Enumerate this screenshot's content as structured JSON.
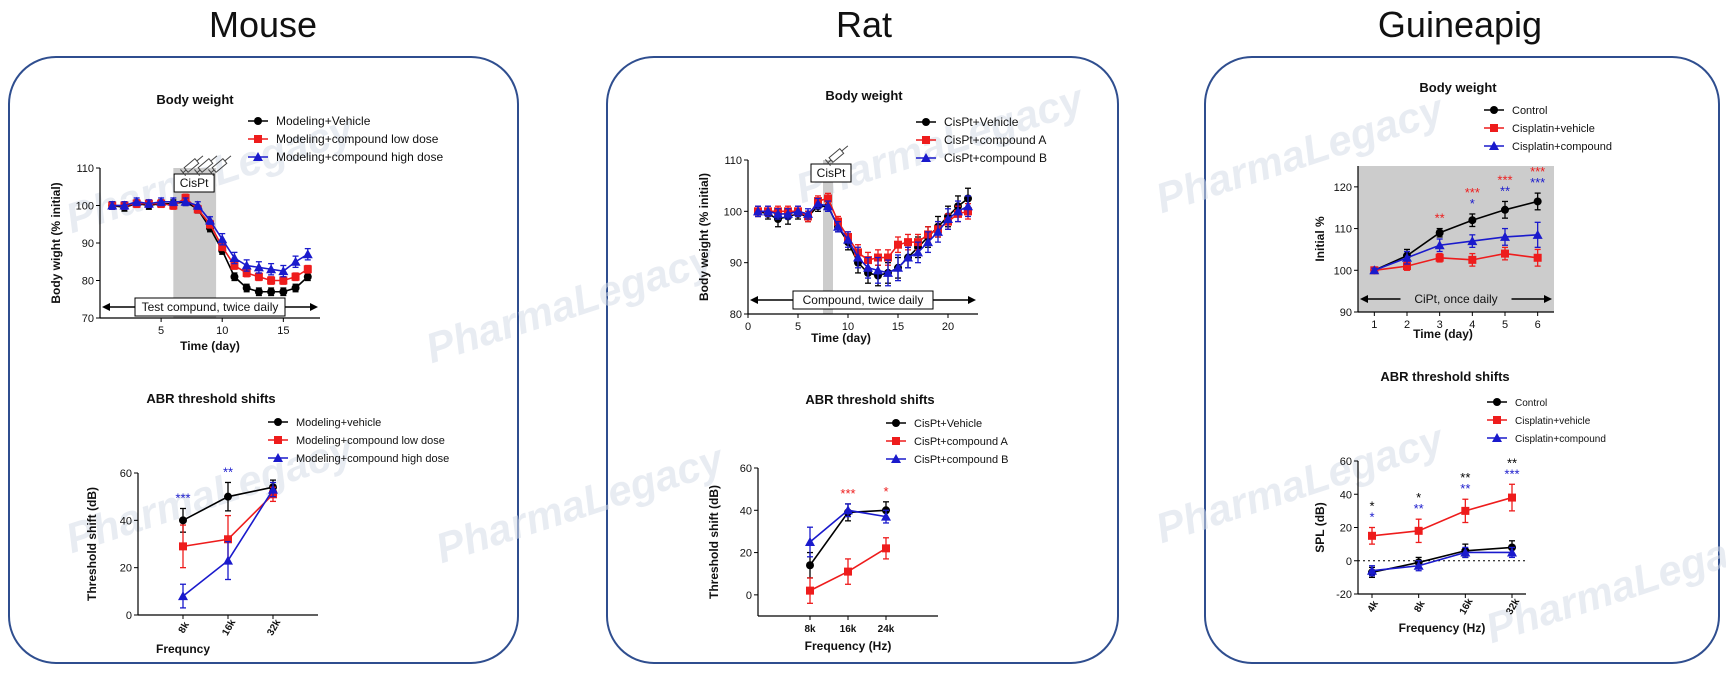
{
  "page": {
    "species": [
      "Mouse",
      "Rat",
      "Guineapig"
    ],
    "watermark": "PharmaLegacy",
    "colors": {
      "black": "#000000",
      "red": "#ee1c1c",
      "blue": "#1a1acc",
      "frame": "#2f4e8f",
      "shade": "#cccccc"
    }
  },
  "chart_data": [
    {
      "id": "mouse_bw",
      "type": "line",
      "title": "Body weight",
      "xlabel": "Time (day)",
      "ylabel": "Body wight (% initial)",
      "xlim": [
        0,
        18
      ],
      "ylim": [
        70,
        110
      ],
      "xticks": [
        5,
        10,
        15
      ],
      "yticks": [
        70,
        80,
        90,
        100,
        110
      ],
      "shade": [
        [
          6,
          9.5
        ]
      ],
      "annotation": "CisPt",
      "arrow_label": "Test compund, twice daily",
      "series": [
        {
          "name": "Modeling+Vehicle",
          "color": "black",
          "marker": "circle",
          "x": [
            1,
            2,
            3,
            4,
            5,
            6,
            7,
            8,
            9,
            10,
            11,
            12,
            13,
            14,
            15,
            16,
            17
          ],
          "values": [
            100,
            99.5,
            100.5,
            100,
            100.5,
            100.5,
            101,
            99,
            94,
            88,
            81,
            78,
            77,
            77,
            77,
            78,
            81
          ],
          "err": [
            1,
            1,
            1,
            1,
            1,
            1,
            1,
            1,
            1,
            1,
            1,
            1,
            1,
            1,
            1,
            1,
            1
          ]
        },
        {
          "name": "Modeling+compound low dose",
          "color": "red",
          "marker": "square",
          "x": [
            1,
            2,
            3,
            4,
            5,
            6,
            7,
            8,
            9,
            10,
            11,
            12,
            13,
            14,
            15,
            16,
            17
          ],
          "values": [
            100,
            100,
            100.5,
            100.5,
            100.5,
            100,
            102,
            99,
            95,
            89,
            84,
            82,
            81,
            80,
            80,
            81,
            83
          ],
          "err": [
            1,
            1,
            1,
            1,
            1,
            1,
            1,
            1,
            1,
            1,
            1,
            1,
            1,
            1,
            1,
            1,
            1
          ]
        },
        {
          "name": "Modeling+compound high dose",
          "color": "blue",
          "marker": "triangle",
          "x": [
            1,
            2,
            3,
            4,
            5,
            6,
            7,
            8,
            9,
            10,
            11,
            12,
            13,
            14,
            15,
            16,
            17
          ],
          "values": [
            100,
            100,
            101,
            100.5,
            101,
            101,
            101,
            100,
            96,
            91,
            86,
            84,
            83.5,
            83,
            82.5,
            85,
            87
          ],
          "err": [
            1,
            1,
            1,
            1,
            1,
            1,
            1,
            1,
            1,
            1.5,
            1.5,
            1.5,
            1.5,
            1.5,
            1.5,
            1.5,
            1.5
          ]
        }
      ]
    },
    {
      "id": "mouse_abr",
      "type": "line",
      "title": "ABR threshold shifts",
      "xlabel": "Frequncy",
      "ylabel": "Threshold shift (dB)",
      "categories": [
        "8k",
        "16k",
        "32k"
      ],
      "ylim": [
        0,
        60
      ],
      "yticks": [
        0,
        20,
        40,
        60
      ],
      "series": [
        {
          "name": "Modeling+vehicle",
          "color": "black",
          "marker": "circle",
          "values": [
            40,
            50,
            54
          ],
          "err": [
            5,
            6,
            3
          ]
        },
        {
          "name": "Modeling+compound low dose",
          "color": "red",
          "marker": "square",
          "values": [
            29,
            32,
            51
          ],
          "err": [
            9,
            10,
            3
          ]
        },
        {
          "name": "Modeling+compound high dose",
          "color": "blue",
          "marker": "triangle",
          "values": [
            8,
            23,
            53
          ],
          "err": [
            5,
            8,
            3
          ]
        }
      ],
      "significance": [
        {
          "category": "8k",
          "rows": [
            {
              "text": "***",
              "color": "blue"
            }
          ]
        },
        {
          "category": "16k",
          "rows": [
            {
              "text": "**",
              "color": "blue"
            }
          ]
        }
      ]
    },
    {
      "id": "rat_bw",
      "type": "line",
      "title": "Body weight",
      "xlabel": "Time (day)",
      "ylabel": "Body weight (% initial)",
      "xlim": [
        0,
        23
      ],
      "ylim": [
        80,
        110
      ],
      "xticks": [
        0,
        5,
        10,
        15,
        20
      ],
      "yticks": [
        80,
        90,
        100,
        110
      ],
      "shade": [
        [
          7.5,
          8.5
        ]
      ],
      "annotation": "CisPt",
      "arrow_label": "Compound, twice daily",
      "series": [
        {
          "name": "CisPt+Vehicle",
          "color": "black",
          "marker": "circle",
          "x": [
            1,
            2,
            3,
            4,
            5,
            6,
            7,
            8,
            9,
            10,
            11,
            12,
            13,
            14,
            15,
            16,
            17,
            18,
            19,
            20,
            21,
            22
          ],
          "values": [
            100,
            99.5,
            98.5,
            99,
            99.5,
            99,
            101,
            101,
            97,
            94,
            90,
            88,
            87.5,
            88,
            89,
            91,
            93,
            95,
            97,
            99,
            101,
            102.5
          ],
          "err": [
            1,
            1,
            1.5,
            1.5,
            1,
            1,
            1,
            1,
            1,
            1.5,
            2,
            2,
            2,
            2,
            2,
            2,
            2,
            2,
            2,
            2,
            2,
            2
          ]
        },
        {
          "name": "CisPt+compound A",
          "color": "red",
          "marker": "square",
          "x": [
            1,
            2,
            3,
            4,
            5,
            6,
            7,
            8,
            9,
            10,
            11,
            12,
            13,
            14,
            15,
            16,
            17,
            18,
            19,
            20,
            21,
            22
          ],
          "values": [
            100,
            100,
            100,
            100,
            100,
            99,
            102,
            102.5,
            98,
            95,
            92,
            90.5,
            91,
            91,
            93.5,
            94,
            94,
            95.5,
            96.5,
            98,
            99.5,
            100
          ],
          "err": [
            1,
            1,
            1,
            1,
            1,
            1,
            1,
            1,
            1,
            1,
            1.5,
            1.5,
            1.5,
            1.5,
            1.5,
            1.5,
            1.5,
            1.5,
            1.5,
            1.5,
            1.5,
            1.5
          ]
        },
        {
          "name": "CisPt+compound B",
          "color": "blue",
          "marker": "triangle",
          "x": [
            1,
            2,
            3,
            4,
            5,
            6,
            7,
            8,
            9,
            10,
            11,
            12,
            13,
            14,
            15,
            16,
            17,
            18,
            19,
            20,
            21,
            22
          ],
          "values": [
            100,
            100,
            99.5,
            99.5,
            100,
            99.5,
            101.5,
            101,
            97,
            94.5,
            91,
            89,
            88.5,
            88,
            89,
            91,
            92,
            94,
            96,
            98.5,
            100,
            101
          ],
          "err": [
            1,
            1,
            1,
            1,
            1,
            1,
            1,
            1,
            1,
            1.5,
            2,
            2,
            2.5,
            2.5,
            2.5,
            2,
            2,
            2,
            2,
            2,
            2,
            2
          ]
        }
      ]
    },
    {
      "id": "rat_abr",
      "type": "line",
      "title": "ABR threshold shifts",
      "xlabel": "Frequency (Hz)",
      "ylabel": "Threshold shift (dB)",
      "categories": [
        "8k",
        "16k",
        "24k"
      ],
      "ylim": [
        -10,
        60
      ],
      "yticks": [
        0,
        20,
        40,
        60
      ],
      "series": [
        {
          "name": "CisPt+Vehicle",
          "color": "black",
          "marker": "circle",
          "values": [
            14,
            39,
            40
          ],
          "err": [
            6,
            4,
            4
          ]
        },
        {
          "name": "CisPt+compound A",
          "color": "red",
          "marker": "square",
          "values": [
            2,
            11,
            22
          ],
          "err": [
            6,
            6,
            5
          ]
        },
        {
          "name": "CisPt+compound B",
          "color": "blue",
          "marker": "triangle",
          "values": [
            25,
            40,
            37
          ],
          "err": [
            7,
            3,
            3
          ]
        }
      ],
      "significance": [
        {
          "category": "16k",
          "rows": [
            {
              "text": "***",
              "color": "red"
            }
          ]
        },
        {
          "category": "24k",
          "rows": [
            {
              "text": "*",
              "color": "red"
            }
          ]
        }
      ]
    },
    {
      "id": "gp_bw",
      "type": "line",
      "title": "Body weight",
      "xlabel": "Time (day)",
      "ylabel": "Initial %",
      "xlim": [
        0.5,
        6.5
      ],
      "ylim": [
        90,
        125
      ],
      "xticks": [
        1,
        2,
        3,
        4,
        5,
        6
      ],
      "yticks": [
        90,
        100,
        110,
        120
      ],
      "shade": [
        [
          0.5,
          6.5
        ]
      ],
      "arrow_label": "CiPt, once daily",
      "series": [
        {
          "name": "Control",
          "color": "black",
          "marker": "circle",
          "x": [
            1,
            2,
            3,
            4,
            5,
            6
          ],
          "values": [
            100,
            103.5,
            109,
            112,
            114.5,
            116.5
          ],
          "err": [
            0.5,
            1.5,
            1,
            1.5,
            2,
            2
          ]
        },
        {
          "name": "Cisplatin+vehicle",
          "color": "red",
          "marker": "square",
          "x": [
            1,
            2,
            3,
            4,
            5,
            6
          ],
          "values": [
            100,
            101,
            103,
            102.5,
            104,
            103
          ],
          "err": [
            0.5,
            1,
            1,
            1.5,
            1.5,
            2
          ]
        },
        {
          "name": "Cisplatin+compound",
          "color": "blue",
          "marker": "triangle",
          "x": [
            1,
            2,
            3,
            4,
            5,
            6
          ],
          "values": [
            100,
            103,
            106,
            107,
            108,
            108.5
          ],
          "err": [
            0.5,
            1.5,
            1.5,
            1.5,
            2,
            3
          ]
        }
      ],
      "significance": [
        {
          "x": 3,
          "rows": [
            {
              "text": "**",
              "color": "red"
            }
          ]
        },
        {
          "x": 4,
          "rows": [
            {
              "text": "***",
              "color": "red"
            },
            {
              "text": "*",
              "color": "blue"
            }
          ]
        },
        {
          "x": 5,
          "rows": [
            {
              "text": "***",
              "color": "red"
            },
            {
              "text": "**",
              "color": "blue"
            }
          ]
        },
        {
          "x": 6,
          "rows": [
            {
              "text": "***",
              "color": "red"
            },
            {
              "text": "***",
              "color": "blue"
            }
          ]
        }
      ]
    },
    {
      "id": "gp_abr",
      "type": "line",
      "title": "ABR threshold shifts",
      "xlabel": "Frequency (Hz)",
      "ylabel": "SPL (dB)",
      "categories": [
        "4k",
        "8k",
        "16k",
        "32k"
      ],
      "ylim": [
        -20,
        60
      ],
      "yticks": [
        -20,
        0,
        20,
        40,
        60
      ],
      "zero_line": true,
      "series": [
        {
          "name": "Control",
          "color": "black",
          "marker": "circle",
          "values": [
            -7,
            -1,
            6,
            8
          ],
          "err": [
            3,
            3,
            4,
            4
          ]
        },
        {
          "name": "Cisplatin+vehicle",
          "color": "red",
          "marker": "square",
          "values": [
            15,
            18,
            30,
            38
          ],
          "err": [
            5,
            7,
            7,
            8
          ]
        },
        {
          "name": "Cisplatin+compound",
          "color": "blue",
          "marker": "triangle",
          "values": [
            -6,
            -3,
            5,
            5
          ],
          "err": [
            3,
            3,
            3,
            3
          ]
        }
      ],
      "significance": [
        {
          "category": "4k",
          "rows": [
            {
              "text": "*",
              "color": "black"
            },
            {
              "text": "*",
              "color": "blue"
            }
          ]
        },
        {
          "category": "8k",
          "rows": [
            {
              "text": "*",
              "color": "black"
            },
            {
              "text": "**",
              "color": "blue"
            }
          ]
        },
        {
          "category": "16k",
          "rows": [
            {
              "text": "**",
              "color": "black"
            },
            {
              "text": "**",
              "color": "blue"
            }
          ]
        },
        {
          "category": "32k",
          "rows": [
            {
              "text": "**",
              "color": "black"
            },
            {
              "text": "***",
              "color": "blue"
            }
          ]
        }
      ]
    }
  ]
}
